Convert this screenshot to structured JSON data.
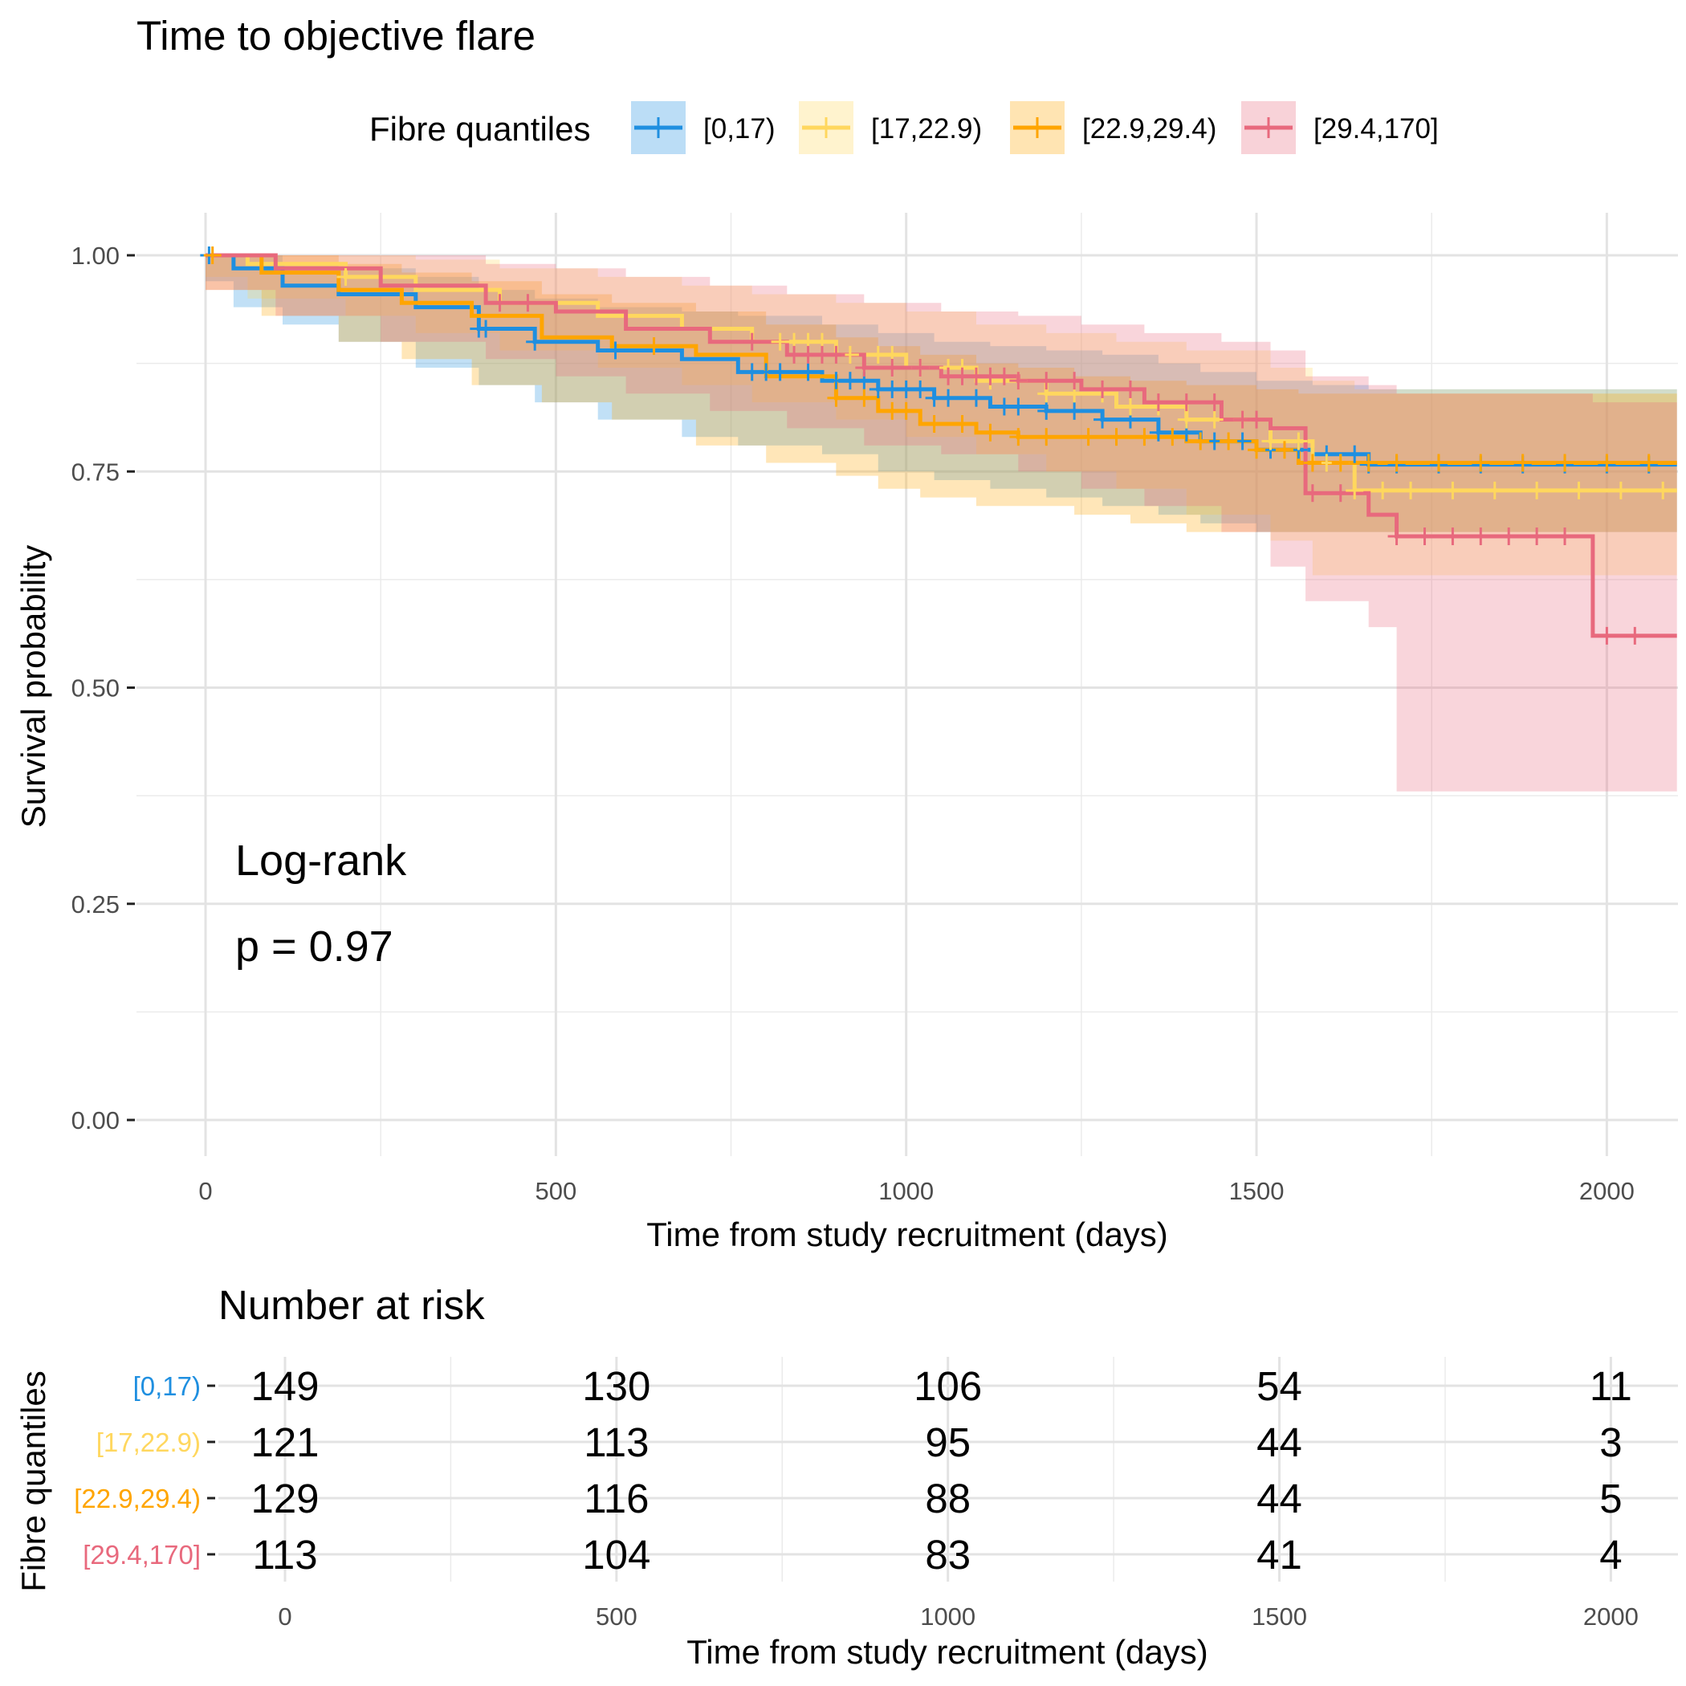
{
  "chart_data": [
    {
      "type": "line",
      "subtype": "kaplan-meier",
      "title": "Time to objective flare",
      "xlabel": "Time from study recruitment (days)",
      "ylabel": "Survival probability",
      "xlim": [
        -100,
        2100
      ],
      "ylim": [
        -0.04,
        1.04
      ],
      "x_ticks": [
        0,
        500,
        1000,
        1500,
        2000
      ],
      "y_ticks": [
        0,
        0.25,
        0.5,
        0.75,
        1
      ],
      "y_tick_labels": [
        "0.00",
        "0.25",
        "0.50",
        "0.75",
        "1.00"
      ],
      "grid": true,
      "legend_title": "Fibre quantiles",
      "legend_position": "top",
      "annotation": {
        "line1": "Log-rank",
        "line2": "p = 0.97"
      },
      "series": [
        {
          "name": "[0,17)",
          "color": "#1f8fe0",
          "x": [
            0,
            40,
            110,
            190,
            300,
            390,
            470,
            560,
            680,
            760,
            880,
            960,
            1040,
            1120,
            1200,
            1280,
            1360,
            1420,
            1500,
            1580,
            1660,
            2100
          ],
          "y": [
            1.0,
            0.985,
            0.965,
            0.955,
            0.94,
            0.915,
            0.9,
            0.89,
            0.88,
            0.865,
            0.855,
            0.845,
            0.835,
            0.825,
            0.82,
            0.81,
            0.795,
            0.785,
            0.775,
            0.77,
            0.758,
            0.758
          ],
          "lower": [
            1.0,
            0.97,
            0.94,
            0.92,
            0.9,
            0.87,
            0.85,
            0.83,
            0.81,
            0.79,
            0.78,
            0.77,
            0.75,
            0.74,
            0.73,
            0.72,
            0.71,
            0.7,
            0.69,
            0.68,
            0.68,
            0.68
          ],
          "upper": [
            1.0,
            1.0,
            0.99,
            0.985,
            0.975,
            0.96,
            0.95,
            0.94,
            0.935,
            0.93,
            0.92,
            0.91,
            0.9,
            0.895,
            0.89,
            0.885,
            0.875,
            0.865,
            0.855,
            0.85,
            0.845,
            0.845
          ],
          "censor_x": [
            5,
            390,
            400,
            470,
            585,
            780,
            800,
            820,
            860,
            900,
            920,
            940,
            960,
            980,
            1000,
            1020,
            1040,
            1060,
            1100,
            1140,
            1160,
            1200,
            1240,
            1280,
            1320,
            1360,
            1400,
            1440,
            1480,
            1520,
            1560,
            1600,
            1640,
            1660,
            1700,
            1760,
            1820,
            1880,
            1940,
            2000,
            2060
          ]
        },
        {
          "name": "[17,22.9)",
          "color": "#ffd75e",
          "x": [
            0,
            60,
            200,
            300,
            420,
            560,
            680,
            780,
            900,
            1000,
            1100,
            1200,
            1300,
            1400,
            1520,
            1580,
            1640,
            2100
          ],
          "y": [
            1.0,
            0.99,
            0.975,
            0.96,
            0.945,
            0.93,
            0.915,
            0.9,
            0.885,
            0.87,
            0.855,
            0.84,
            0.825,
            0.81,
            0.785,
            0.76,
            0.728,
            0.728
          ],
          "lower": [
            1.0,
            0.975,
            0.95,
            0.93,
            0.91,
            0.89,
            0.87,
            0.85,
            0.83,
            0.81,
            0.79,
            0.77,
            0.75,
            0.73,
            0.7,
            0.67,
            0.63,
            0.63
          ],
          "upper": [
            1.0,
            1.0,
            1.0,
            0.995,
            0.985,
            0.975,
            0.965,
            0.955,
            0.945,
            0.935,
            0.92,
            0.91,
            0.9,
            0.89,
            0.87,
            0.855,
            0.845,
            0.845
          ],
          "censor_x": [
            200,
            820,
            840,
            860,
            880,
            920,
            960,
            980,
            1020,
            1060,
            1080,
            1120,
            1160,
            1200,
            1240,
            1280,
            1320,
            1360,
            1400,
            1440,
            1480,
            1520,
            1560,
            1600,
            1620,
            1640,
            1680,
            1720,
            1780,
            1840,
            1900,
            1960,
            2020,
            2080
          ]
        },
        {
          "name": "[22.9,29.4)",
          "color": "#ffa500",
          "x": [
            0,
            80,
            190,
            280,
            380,
            480,
            580,
            700,
            800,
            900,
            960,
            1020,
            1100,
            1160,
            1240,
            1320,
            1400,
            1500,
            1560,
            2100
          ],
          "y": [
            1.0,
            0.98,
            0.96,
            0.945,
            0.93,
            0.905,
            0.895,
            0.885,
            0.86,
            0.835,
            0.82,
            0.805,
            0.795,
            0.79,
            0.79,
            0.79,
            0.785,
            0.775,
            0.76,
            0.76
          ],
          "lower": [
            1.0,
            0.96,
            0.93,
            0.9,
            0.88,
            0.85,
            0.83,
            0.81,
            0.78,
            0.76,
            0.745,
            0.73,
            0.72,
            0.71,
            0.71,
            0.7,
            0.69,
            0.68,
            0.68,
            0.68
          ],
          "upper": [
            1.0,
            1.0,
            0.99,
            0.98,
            0.97,
            0.955,
            0.945,
            0.935,
            0.92,
            0.905,
            0.895,
            0.885,
            0.875,
            0.87,
            0.86,
            0.855,
            0.85,
            0.845,
            0.84,
            0.84
          ],
          "censor_x": [
            10,
            640,
            900,
            940,
            980,
            1000,
            1040,
            1080,
            1120,
            1160,
            1200,
            1260,
            1300,
            1340,
            1380,
            1420,
            1460,
            1500,
            1540,
            1580,
            1620,
            1660,
            1700,
            1760,
            1820,
            1880,
            1940,
            2000,
            2060
          ]
        },
        {
          "name": "[29.4,170]",
          "color": "#e8697d",
          "x": [
            0,
            100,
            250,
            400,
            500,
            600,
            720,
            830,
            940,
            1050,
            1160,
            1250,
            1340,
            1450,
            1520,
            1570,
            1660,
            1700,
            1980,
            2100
          ],
          "y": [
            1.0,
            0.985,
            0.965,
            0.945,
            0.935,
            0.915,
            0.9,
            0.885,
            0.87,
            0.86,
            0.855,
            0.845,
            0.83,
            0.81,
            0.8,
            0.725,
            0.7,
            0.675,
            0.56,
            0.56
          ],
          "lower": [
            1.0,
            0.96,
            0.93,
            0.9,
            0.88,
            0.86,
            0.84,
            0.82,
            0.8,
            0.78,
            0.77,
            0.75,
            0.73,
            0.71,
            0.68,
            0.64,
            0.6,
            0.57,
            0.38,
            0.38
          ],
          "upper": [
            1.0,
            1.0,
            1.0,
            0.99,
            0.985,
            0.975,
            0.965,
            0.955,
            0.945,
            0.935,
            0.93,
            0.92,
            0.91,
            0.9,
            0.89,
            0.86,
            0.85,
            0.84,
            0.83,
            0.83
          ],
          "censor_x": [
            420,
            460,
            780,
            840,
            860,
            880,
            900,
            940,
            980,
            1020,
            1060,
            1080,
            1100,
            1120,
            1140,
            1160,
            1200,
            1240,
            1280,
            1320,
            1360,
            1400,
            1440,
            1480,
            1500,
            1580,
            1620,
            1700,
            1740,
            1780,
            1820,
            1860,
            1900,
            1940,
            2000,
            2040
          ]
        }
      ]
    },
    {
      "type": "table",
      "title": "Number at risk",
      "xlabel": "Time from study recruitment (days)",
      "ylabel": "Fibre quantiles",
      "xlim": [
        -100,
        2100
      ],
      "x_ticks": [
        0,
        500,
        1000,
        1500,
        2000
      ],
      "time_points": [
        0,
        500,
        1000,
        1500,
        2000
      ],
      "rows": [
        {
          "name": "[0,17)",
          "color": "#1f8fe0",
          "values": [
            149,
            130,
            106,
            54,
            11
          ]
        },
        {
          "name": "[17,22.9)",
          "color": "#ffd75e",
          "values": [
            121,
            113,
            95,
            44,
            3
          ]
        },
        {
          "name": "[22.9,29.4)",
          "color": "#ffa500",
          "values": [
            129,
            116,
            88,
            44,
            5
          ]
        },
        {
          "name": "[29.4,170]",
          "color": "#e8697d",
          "values": [
            113,
            104,
            83,
            41,
            4
          ]
        }
      ]
    }
  ]
}
